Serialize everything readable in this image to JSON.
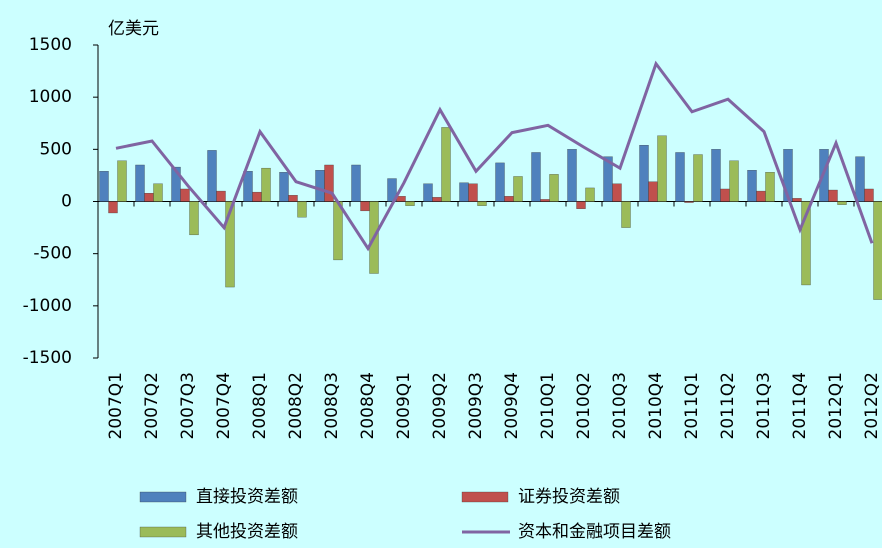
{
  "chart_data": {
    "type": "bar",
    "unit_label": "亿美元",
    "categories": [
      "2007Q1",
      "2007Q2",
      "2007Q3",
      "2007Q4",
      "2008Q1",
      "2008Q2",
      "2008Q3",
      "2008Q4",
      "2009Q1",
      "2009Q2",
      "2009Q3",
      "2009Q4",
      "2010Q1",
      "2010Q2",
      "2010Q3",
      "2010Q4",
      "2011Q1",
      "2011Q2",
      "2011Q3",
      "2011Q4",
      "2012Q1",
      "2012Q2"
    ],
    "ylim": [
      -1500,
      1500
    ],
    "yticks": [
      -1500,
      -1000,
      -500,
      0,
      500,
      1000,
      1500
    ],
    "grid": false,
    "series": [
      {
        "name": "直接投资差额",
        "type": "bar",
        "color": "#4f81bd",
        "values": [
          290,
          350,
          330,
          490,
          290,
          280,
          300,
          350,
          220,
          170,
          180,
          370,
          470,
          500,
          430,
          540,
          470,
          500,
          300,
          500,
          500,
          430
        ]
      },
      {
        "name": "证券投资差额",
        "type": "bar",
        "color": "#c0504d",
        "values": [
          -110,
          80,
          120,
          100,
          90,
          60,
          350,
          -90,
          50,
          40,
          170,
          50,
          20,
          -70,
          170,
          190,
          -10,
          120,
          100,
          30,
          110,
          120
        ]
      },
      {
        "name": "其他投资差额",
        "type": "bar",
        "color": "#9bbb59",
        "values": [
          390,
          170,
          -320,
          -820,
          320,
          -150,
          -560,
          -690,
          -40,
          710,
          -40,
          240,
          260,
          130,
          -250,
          630,
          450,
          390,
          280,
          -800,
          -30,
          -940
        ]
      },
      {
        "name": "资本和金融项目差额",
        "type": "line",
        "color": "#8064a2",
        "values": [
          510,
          580,
          150,
          -250,
          670,
          190,
          80,
          -450,
          180,
          880,
          290,
          660,
          730,
          520,
          320,
          1320,
          860,
          980,
          670,
          -270,
          560,
          -400
        ]
      }
    ]
  }
}
